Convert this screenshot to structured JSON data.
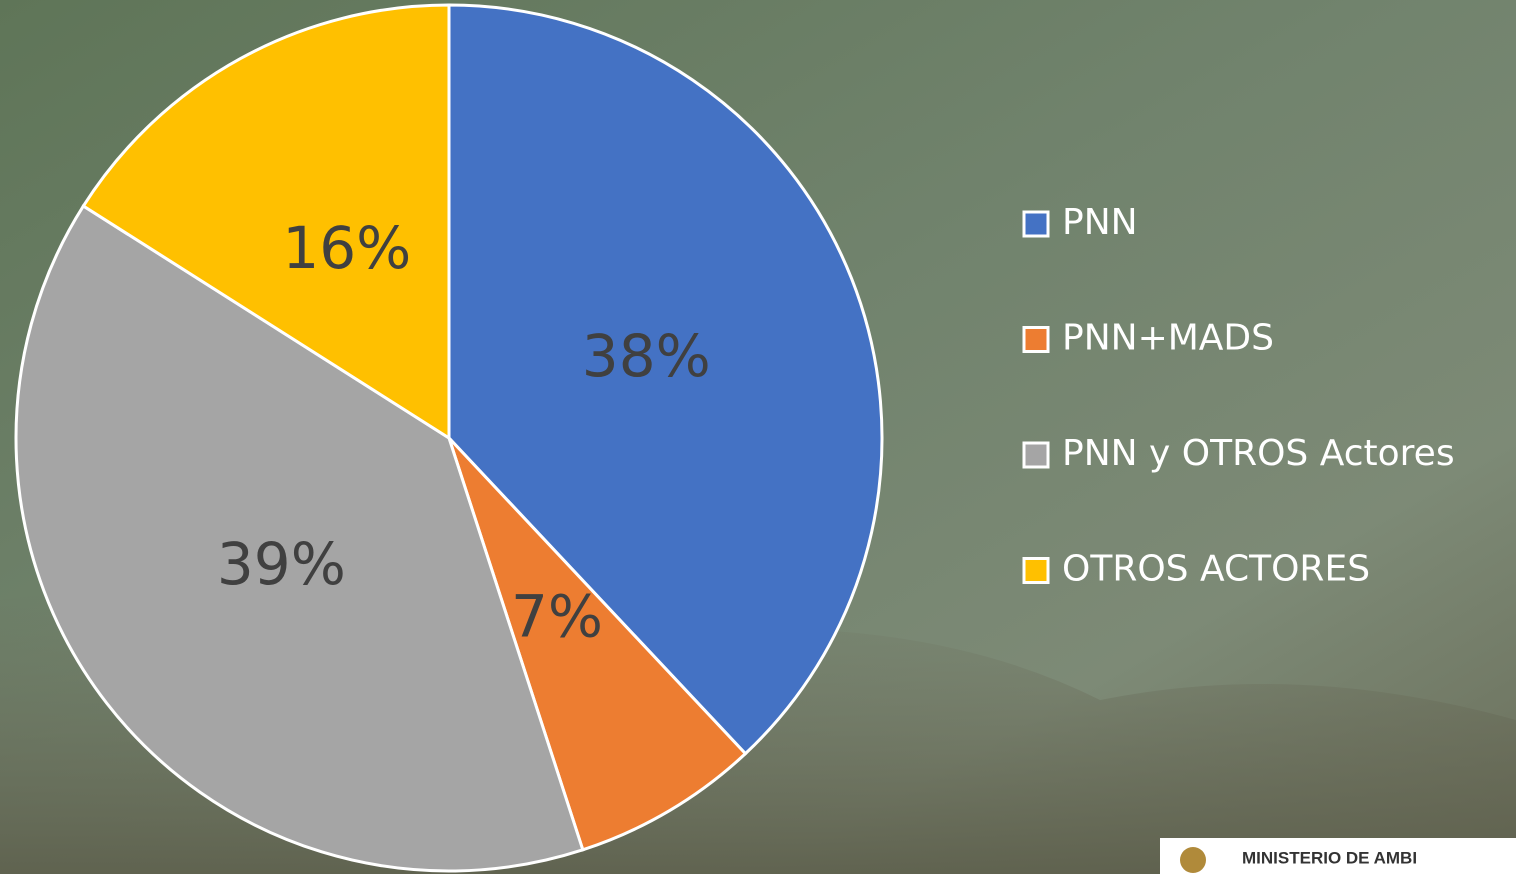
{
  "chart_data": {
    "type": "pie",
    "categories": [
      "PNN",
      "PNN+MADS",
      "PNN y OTROS Actores",
      "OTROS ACTORES"
    ],
    "values": [
      38,
      7,
      39,
      16
    ],
    "value_labels": [
      "38%",
      "7%",
      "39%",
      "16%"
    ],
    "colors": [
      "#4472c4",
      "#ed7d31",
      "#a5a5a5",
      "#ffc000"
    ],
    "legend": "right"
  },
  "footer": {
    "logo_text": "MINISTERIO DE AMBI"
  }
}
